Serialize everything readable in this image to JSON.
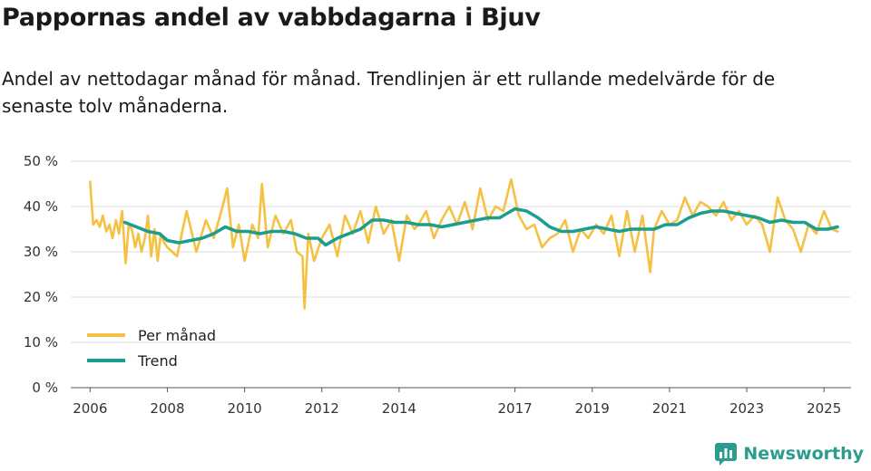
{
  "chart_data": {
    "type": "line",
    "title": "Pappornas andel av vabbdagarna i Bjuv",
    "subtitle": "Andel av nettodagar månad för månad. Trendlinjen är ett rullande medelvärde för de senaste tolv månaderna.",
    "xlabel": "",
    "ylabel": "",
    "ylim": [
      0,
      50
    ],
    "xlim": [
      2005.5,
      2025.7
    ],
    "y_ticks": [
      0,
      10,
      20,
      30,
      40,
      50
    ],
    "y_tick_labels": [
      "0 %",
      "10 %",
      "20 %",
      "30 %",
      "40 %",
      "50 %"
    ],
    "x_ticks": [
      2006,
      2008,
      2010,
      2012,
      2014,
      2017,
      2019,
      2021,
      2023,
      2025
    ],
    "x_tick_labels": [
      "2006",
      "2008",
      "2010",
      "2012",
      "2014",
      "2017",
      "2019",
      "2021",
      "2023",
      "2025"
    ],
    "grid": true,
    "legend_position": "bottom-left",
    "series": [
      {
        "name": "Per månad",
        "color": "#f6c143",
        "x": [
          2006.0,
          2006.08,
          2006.17,
          2006.25,
          2006.33,
          2006.42,
          2006.5,
          2006.58,
          2006.67,
          2006.75,
          2006.83,
          2006.92,
          2007.0,
          2007.08,
          2007.17,
          2007.25,
          2007.33,
          2007.42,
          2007.5,
          2007.58,
          2007.67,
          2007.75,
          2007.83,
          2007.92,
          2008.0,
          2008.25,
          2008.5,
          2008.75,
          2009.0,
          2009.2,
          2009.4,
          2009.55,
          2009.7,
          2009.85,
          2010.0,
          2010.2,
          2010.35,
          2010.45,
          2010.6,
          2010.8,
          2011.0,
          2011.2,
          2011.35,
          2011.5,
          2011.55,
          2011.65,
          2011.8,
          2012.0,
          2012.2,
          2012.4,
          2012.6,
          2012.8,
          2013.0,
          2013.2,
          2013.4,
          2013.6,
          2013.8,
          2014.0,
          2014.2,
          2014.4,
          2014.5,
          2014.7,
          2014.9,
          2015.1,
          2015.3,
          2015.5,
          2015.7,
          2015.9,
          2016.1,
          2016.3,
          2016.5,
          2016.7,
          2016.9,
          2017.1,
          2017.3,
          2017.5,
          2017.7,
          2017.9,
          2018.1,
          2018.3,
          2018.5,
          2018.7,
          2018.9,
          2019.1,
          2019.3,
          2019.5,
          2019.7,
          2019.9,
          2020.1,
          2020.3,
          2020.5,
          2020.6,
          2020.8,
          2021.0,
          2021.2,
          2021.4,
          2021.6,
          2021.8,
          2022.0,
          2022.2,
          2022.4,
          2022.6,
          2022.8,
          2023.0,
          2023.2,
          2023.4,
          2023.6,
          2023.8,
          2024.0,
          2024.2,
          2024.4,
          2024.6,
          2024.8,
          2025.0,
          2025.2,
          2025.35
        ],
        "values": [
          45.5,
          36,
          37,
          35.5,
          38,
          34.5,
          36,
          33,
          37,
          34,
          39,
          27.5,
          36,
          35,
          31,
          34,
          30,
          33,
          38,
          29,
          35,
          28,
          34,
          32,
          31,
          29,
          39,
          30,
          37,
          33,
          39,
          44,
          31,
          36,
          28,
          36,
          33,
          45,
          31,
          38,
          34,
          37,
          30,
          29,
          17.5,
          34,
          28,
          33,
          36,
          29,
          38,
          34,
          39,
          32,
          40,
          34,
          37,
          28,
          38,
          35,
          36,
          39,
          33,
          37,
          40,
          36,
          41,
          35,
          44,
          37,
          40,
          39,
          46,
          38,
          35,
          36,
          31,
          33,
          34,
          37,
          30,
          35,
          33,
          36,
          34,
          38,
          29,
          39,
          30,
          38,
          25.5,
          35,
          39,
          36,
          37,
          42,
          38,
          41,
          40,
          38,
          41,
          37,
          39,
          36,
          38,
          36,
          30,
          42,
          37,
          35,
          30,
          36,
          34,
          39,
          35,
          34.5
        ]
      },
      {
        "name": "Trend",
        "color": "#1a9e8f",
        "x": [
          2006.9,
          2007.2,
          2007.5,
          2007.8,
          2008.0,
          2008.3,
          2008.6,
          2008.9,
          2009.2,
          2009.5,
          2009.8,
          2010.1,
          2010.4,
          2010.7,
          2011.0,
          2011.3,
          2011.6,
          2011.9,
          2012.1,
          2012.4,
          2012.7,
          2013.0,
          2013.3,
          2013.6,
          2013.9,
          2014.2,
          2014.5,
          2014.8,
          2015.1,
          2015.4,
          2015.7,
          2016.0,
          2016.3,
          2016.6,
          2016.8,
          2017.0,
          2017.3,
          2017.6,
          2017.9,
          2018.2,
          2018.5,
          2018.8,
          2019.1,
          2019.4,
          2019.7,
          2020.0,
          2020.3,
          2020.6,
          2020.9,
          2021.2,
          2021.5,
          2021.8,
          2022.1,
          2022.4,
          2022.7,
          2023.0,
          2023.3,
          2023.6,
          2023.9,
          2024.2,
          2024.5,
          2024.8,
          2025.1,
          2025.35
        ],
        "values": [
          36.5,
          35.5,
          34.5,
          34,
          32.5,
          32,
          32.5,
          33,
          34,
          35.5,
          34.5,
          34.5,
          34,
          34.5,
          34.5,
          34,
          33,
          33,
          31.5,
          33,
          34,
          35,
          37,
          37,
          36.5,
          36.5,
          36,
          36,
          35.5,
          36,
          36.5,
          37,
          37.5,
          37.5,
          38.5,
          39.5,
          39,
          37.5,
          35.5,
          34.5,
          34.5,
          35,
          35.5,
          35,
          34.5,
          35,
          35,
          35,
          36,
          36,
          37.5,
          38.5,
          39,
          39,
          38.5,
          38,
          37.5,
          36.5,
          37,
          36.5,
          36.5,
          35,
          35,
          35.5
        ]
      }
    ]
  },
  "brand": {
    "name": "Newsworthy",
    "color": "#2a9d8f"
  }
}
